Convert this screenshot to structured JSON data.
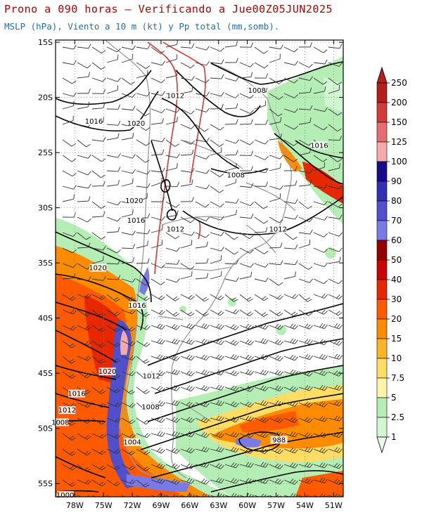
{
  "header": {
    "title": "Prono a 090 horas — Verificando a Jue00Z05JUN2025",
    "subtitle": "MSLP (hPa), Viento a 10 m (kt) y Pp total (mm,somb)."
  },
  "map": {
    "lat_labels": [
      "15S",
      "20S",
      "25S",
      "30S",
      "35S",
      "40S",
      "45S",
      "50S",
      "55S"
    ],
    "lon_labels": [
      "78W",
      "75W",
      "72W",
      "69W",
      "66W",
      "63W",
      "60W",
      "57W",
      "54W",
      "51W"
    ],
    "isobar_labels": [
      {
        "text": "1012",
        "lon": -67.5,
        "lat": -20.0
      },
      {
        "text": "1008",
        "lon": -59.0,
        "lat": -19.5
      },
      {
        "text": "1016",
        "lon": -76.0,
        "lat": -22.3
      },
      {
        "text": "1020",
        "lon": -71.6,
        "lat": -22.5
      },
      {
        "text": "1016",
        "lon": -52.5,
        "lat": -24.5
      },
      {
        "text": "1008",
        "lon": -61.2,
        "lat": -27.2
      },
      {
        "text": "1020",
        "lon": -71.8,
        "lat": -29.5
      },
      {
        "text": "1016",
        "lon": -71.6,
        "lat": -31.3
      },
      {
        "text": "1012",
        "lon": -67.5,
        "lat": -32.1
      },
      {
        "text": "1012",
        "lon": -56.8,
        "lat": -32.1
      },
      {
        "text": "1020",
        "lon": -75.6,
        "lat": -35.6
      },
      {
        "text": "1016",
        "lon": -71.5,
        "lat": -39.0
      },
      {
        "text": "1020",
        "lon": -74.6,
        "lat": -45.0
      },
      {
        "text": "1012",
        "lon": -70.0,
        "lat": -45.4
      },
      {
        "text": "1016",
        "lon": -77.8,
        "lat": -47.0
      },
      {
        "text": "1008",
        "lon": -70.1,
        "lat": -48.2
      },
      {
        "text": "1012",
        "lon": -78.8,
        "lat": -48.5
      },
      {
        "text": "1008",
        "lon": -79.5,
        "lat": -49.6
      },
      {
        "text": "1004",
        "lon": -72.0,
        "lat": -51.4
      },
      {
        "text": "988",
        "lon": -56.7,
        "lat": -51.2
      },
      {
        "text": "1000",
        "lon": -79.0,
        "lat": -56.2
      }
    ]
  },
  "colorbar": {
    "labels": [
      "250",
      "200",
      "150",
      "125",
      "100",
      "90",
      "80",
      "70",
      "60",
      "50",
      "40",
      "30",
      "20",
      "15",
      "10",
      "7.5",
      "5",
      "2.5",
      "1"
    ],
    "colors": [
      "#b41e1e",
      "#d23c3c",
      "#e66e6e",
      "#f5aaaa",
      "#1a0a8c",
      "#3030b4",
      "#5050cc",
      "#7a7ae6",
      "#960000",
      "#c80000",
      "#e62800",
      "#ff5a00",
      "#ff8c00",
      "#ffb428",
      "#ffdc64",
      "#fff5aa",
      "#b4eeb4",
      "#d2f5d2",
      "#ebfaeb"
    ]
  }
}
